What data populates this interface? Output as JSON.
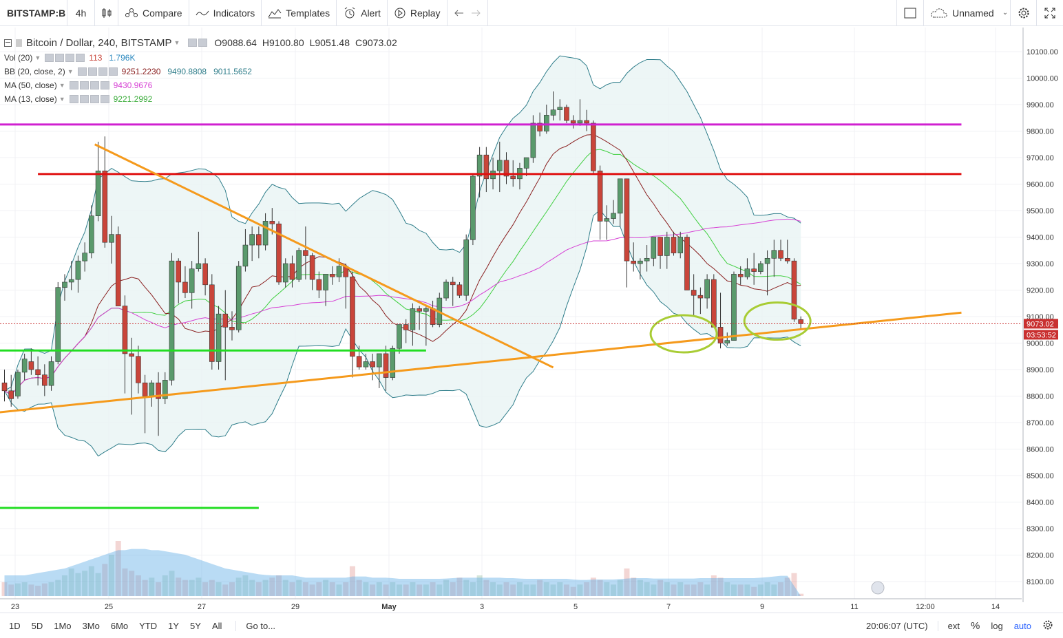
{
  "toolbar": {
    "symbol": "BITSTAMP:B",
    "interval": "4h",
    "compare": "Compare",
    "indicators": "Indicators",
    "templates": "Templates",
    "alert": "Alert",
    "replay": "Replay",
    "layout_name": "Unnamed",
    "icons": [
      "bar-style-icon",
      "compare-icon",
      "indicators-icon",
      "templates-icon",
      "alert-icon",
      "replay-icon",
      "undo-icon",
      "redo-icon",
      "layout-icon",
      "cloud-icon",
      "settings-icon",
      "fullscreen-icon"
    ]
  },
  "legend": {
    "title": "Bitcoin / Dollar, 240, BITSTAMP",
    "open": "O9088.64",
    "high": "H9100.80",
    "low": "L9051.48",
    "close": "C9073.02",
    "vol_name": "Vol (20)",
    "vol_value1": "113",
    "vol_value2": "1.796K",
    "bb_name": "BB (20, close, 2)",
    "bb_basis": "9251.2230",
    "bb_upper": "9490.8808",
    "bb_lower": "9011.5652",
    "ma50_name": "MA (50, close)",
    "ma50_value": "9430.9676",
    "ma13_name": "MA (13, close)",
    "ma13_value": "9221.2992"
  },
  "colors": {
    "up": "#5a9a6c",
    "down": "#c9453a",
    "bb": "#2e7d8a",
    "bb_fill": "#e8f4f4",
    "ma50": "#d63fd4",
    "ma13": "#8a2020",
    "bb_basis": "#3fcf3f",
    "hline_magenta": "#d020d0",
    "hline_red": "#e01010",
    "hline_green": "#22dd22",
    "trend_orange": "#f59a1c",
    "ellipse": "#a8cc34",
    "price_label": "#c93030"
  },
  "price_axis": {
    "ticks": [
      "10100.00",
      "10000.00",
      "9900.00",
      "9800.00",
      "9700.00",
      "9600.00",
      "9500.00",
      "9400.00",
      "9300.00",
      "9200.00",
      "9100.00",
      "9000.00",
      "8900.00",
      "8800.00",
      "8700.00",
      "8600.00",
      "8500.00",
      "8400.00",
      "8300.00",
      "8200.00",
      "8100.00"
    ],
    "current_price": "9073.02",
    "countdown": "03:53:52"
  },
  "time_axis": {
    "labels": [
      "23",
      "25",
      "27",
      "29",
      "May",
      "3",
      "5",
      "7",
      "9",
      "11",
      "12:00",
      "14"
    ]
  },
  "bottom_bar": {
    "ranges": [
      "1D",
      "5D",
      "1Mo",
      "3Mo",
      "6Mo",
      "YTD",
      "1Y",
      "5Y",
      "All"
    ],
    "goto": "Go to...",
    "time": "20:06:07 (UTC)",
    "ext": "ext",
    "percent": "%",
    "log": "log",
    "auto": "auto"
  },
  "chart_data": {
    "type": "candlestick",
    "symbol": "Bitcoin / Dollar",
    "interval": "240",
    "ylim": [
      8030,
      10160
    ],
    "candles_ohlc": [
      [
        8850,
        8900,
        8780,
        8820
      ],
      [
        8820,
        8880,
        8760,
        8790
      ],
      [
        8800,
        8900,
        8790,
        8890
      ],
      [
        8890,
        8960,
        8860,
        8940
      ],
      [
        8930,
        8980,
        8880,
        8900
      ],
      [
        8900,
        8950,
        8840,
        8880
      ],
      [
        8880,
        8920,
        8800,
        8840
      ],
      [
        8840,
        8950,
        8820,
        8930
      ],
      [
        8930,
        9230,
        8920,
        9210
      ],
      [
        9210,
        9260,
        9160,
        9230
      ],
      [
        9230,
        9310,
        9200,
        9240
      ],
      [
        9240,
        9330,
        9190,
        9310
      ],
      [
        9310,
        9380,
        9270,
        9340
      ],
      [
        9340,
        9520,
        9320,
        9480
      ],
      [
        9480,
        9760,
        9460,
        9650
      ],
      [
        9650,
        9780,
        9360,
        9380
      ],
      [
        9380,
        9480,
        9300,
        9410
      ],
      [
        9410,
        9440,
        9140,
        9140
      ],
      [
        9140,
        9180,
        8810,
        8960
      ],
      [
        8960,
        9020,
        8730,
        8950
      ],
      [
        8950,
        8990,
        8810,
        8850
      ],
      [
        8850,
        8880,
        8660,
        8800
      ],
      [
        8800,
        8860,
        8760,
        8850
      ],
      [
        8850,
        8890,
        8650,
        8790
      ],
      [
        8790,
        8890,
        8770,
        8860
      ],
      [
        8860,
        9340,
        8840,
        9310
      ],
      [
        9310,
        9320,
        9150,
        9230
      ],
      [
        9230,
        9290,
        9170,
        9190
      ],
      [
        9190,
        9310,
        9130,
        9280
      ],
      [
        9280,
        9420,
        9270,
        9300
      ],
      [
        9300,
        9320,
        9180,
        9220
      ],
      [
        9220,
        9260,
        8900,
        8930
      ],
      [
        8930,
        9140,
        8900,
        9110
      ],
      [
        9110,
        9200,
        8860,
        9060
      ],
      [
        9060,
        9120,
        9010,
        9050
      ],
      [
        9050,
        9310,
        9040,
        9290
      ],
      [
        9290,
        9430,
        9270,
        9370
      ],
      [
        9370,
        9440,
        9310,
        9410
      ],
      [
        9410,
        9440,
        9320,
        9370
      ],
      [
        9370,
        9490,
        9350,
        9460
      ],
      [
        9460,
        9510,
        9410,
        9450
      ],
      [
        9450,
        9460,
        9220,
        9230
      ],
      [
        9230,
        9320,
        9210,
        9300
      ],
      [
        9300,
        9330,
        9210,
        9240
      ],
      [
        9240,
        9360,
        9230,
        9350
      ],
      [
        9350,
        9440,
        9240,
        9330
      ],
      [
        9330,
        9340,
        9200,
        9240
      ],
      [
        9240,
        9270,
        9170,
        9200
      ],
      [
        9200,
        9240,
        9140,
        9260
      ],
      [
        9260,
        9290,
        9220,
        9250
      ],
      [
        9250,
        9320,
        9230,
        9290
      ],
      [
        9290,
        9300,
        9130,
        9250
      ],
      [
        9250,
        9270,
        8870,
        8950
      ],
      [
        8950,
        8990,
        8900,
        8910
      ],
      [
        8910,
        8960,
        8900,
        8930
      ],
      [
        8930,
        8960,
        8860,
        8910
      ],
      [
        8910,
        8960,
        8830,
        8960
      ],
      [
        8960,
        8990,
        8820,
        8870
      ],
      [
        8870,
        8990,
        8860,
        8980
      ],
      [
        8980,
        9070,
        8960,
        9070
      ],
      [
        9070,
        9090,
        9000,
        9050
      ],
      [
        9050,
        9150,
        8990,
        9130
      ],
      [
        9130,
        9140,
        9050,
        9120
      ],
      [
        9120,
        9140,
        8990,
        9130
      ],
      [
        9130,
        9160,
        9060,
        9070
      ],
      [
        9070,
        9190,
        9060,
        9170
      ],
      [
        9170,
        9240,
        9160,
        9230
      ],
      [
        9230,
        9250,
        9140,
        9220
      ],
      [
        9220,
        9230,
        9170,
        9180
      ],
      [
        9180,
        9410,
        9160,
        9390
      ],
      [
        9390,
        9640,
        9370,
        9630
      ],
      [
        9630,
        9740,
        9550,
        9710
      ],
      [
        9710,
        9740,
        9570,
        9620
      ],
      [
        9620,
        9700,
        9580,
        9650
      ],
      [
        9650,
        9760,
        9570,
        9690
      ],
      [
        9690,
        9720,
        9600,
        9630
      ],
      [
        9630,
        9690,
        9590,
        9620
      ],
      [
        9620,
        9680,
        9580,
        9660
      ],
      [
        9660,
        9700,
        9630,
        9700
      ],
      [
        9700,
        9860,
        9680,
        9830
      ],
      [
        9830,
        9870,
        9780,
        9800
      ],
      [
        9800,
        9900,
        9790,
        9860
      ],
      [
        9860,
        9950,
        9840,
        9880
      ],
      [
        9880,
        9920,
        9840,
        9890
      ],
      [
        9890,
        9900,
        9830,
        9840
      ],
      [
        9840,
        9860,
        9810,
        9830
      ],
      [
        9830,
        9920,
        9820,
        9840
      ],
      [
        9840,
        9880,
        9800,
        9830
      ],
      [
        9830,
        9840,
        9640,
        9650
      ],
      [
        9650,
        9670,
        9390,
        9460
      ],
      [
        9460,
        9520,
        9390,
        9470
      ],
      [
        9470,
        9540,
        9450,
        9490
      ],
      [
        9490,
        9620,
        9440,
        9620
      ],
      [
        9620,
        9620,
        9210,
        9310
      ],
      [
        9310,
        9380,
        9270,
        9300
      ],
      [
        9300,
        9320,
        9240,
        9310
      ],
      [
        9310,
        9370,
        9270,
        9320
      ],
      [
        9320,
        9400,
        9290,
        9400
      ],
      [
        9400,
        9400,
        9280,
        9330
      ],
      [
        9330,
        9420,
        9280,
        9400
      ],
      [
        9400,
        9420,
        9330,
        9340
      ],
      [
        9340,
        9420,
        9320,
        9400
      ],
      [
        9400,
        9410,
        9200,
        9200
      ],
      [
        9200,
        9260,
        9100,
        9180
      ],
      [
        9180,
        9210,
        9110,
        9170
      ],
      [
        9170,
        9260,
        9130,
        9240
      ],
      [
        9240,
        9260,
        9060,
        9060
      ],
      [
        9060,
        9190,
        8980,
        9000
      ],
      [
        9000,
        9040,
        8990,
        9010
      ],
      [
        9010,
        9270,
        9010,
        9260
      ],
      [
        9260,
        9290,
        9220,
        9250
      ],
      [
        9250,
        9320,
        9240,
        9280
      ],
      [
        9280,
        9340,
        9220,
        9270
      ],
      [
        9270,
        9310,
        9260,
        9300
      ],
      [
        9300,
        9350,
        9180,
        9320
      ],
      [
        9320,
        9390,
        9250,
        9350
      ],
      [
        9350,
        9390,
        9310,
        9320
      ],
      [
        9320,
        9390,
        9300,
        9310
      ],
      [
        9310,
        9320,
        9080,
        9090
      ],
      [
        9088.64,
        9100.8,
        9051.48,
        9073.02
      ]
    ],
    "volume_max_scale": 3.0,
    "volume": [
      0.6,
      0.5,
      0.55,
      0.6,
      0.5,
      0.45,
      0.55,
      0.6,
      0.7,
      0.9,
      1.2,
      1.0,
      1.1,
      1.3,
      1.0,
      1.4,
      1.8,
      2.4,
      1.2,
      1.1,
      0.9,
      0.7,
      0.8,
      0.6,
      0.9,
      1.1,
      0.8,
      0.7,
      0.7,
      0.8,
      0.6,
      0.7,
      0.6,
      0.5,
      0.6,
      0.8,
      0.9,
      0.7,
      0.6,
      0.7,
      0.8,
      0.9,
      0.7,
      0.6,
      0.7,
      0.6,
      0.5,
      0.6,
      0.7,
      0.6,
      0.5,
      0.6,
      1.3,
      0.7,
      0.6,
      0.5,
      0.6,
      0.5,
      0.6,
      0.5,
      0.5,
      0.6,
      0.5,
      0.5,
      0.6,
      0.5,
      0.7,
      0.6,
      0.8,
      0.7,
      0.6,
      0.9,
      0.7,
      0.6,
      0.5,
      0.6,
      0.5,
      0.6,
      0.5,
      0.5,
      0.7,
      0.6,
      0.5,
      0.6,
      0.5,
      0.4,
      0.5,
      0.6,
      0.8,
      0.7,
      0.6,
      0.5,
      0.7,
      1.2,
      0.8,
      0.7,
      0.6,
      0.5,
      0.7,
      0.6,
      0.5,
      0.6,
      0.5,
      0.5,
      0.6,
      0.5,
      0.9,
      0.8,
      0.6,
      0.5,
      0.5,
      0.5,
      0.4,
      0.5,
      0.6,
      0.5,
      0.6,
      0.8,
      1.0,
      0.1
    ],
    "volume_ma": [
      0.9,
      0.9,
      0.9,
      0.9,
      0.95,
      1.0,
      1.05,
      1.1,
      1.15,
      1.2,
      1.3,
      1.4,
      1.5,
      1.6,
      1.7,
      1.8,
      1.9,
      2.0,
      2.0,
      2.05,
      2.05,
      2.05,
      2.0,
      2.0,
      1.95,
      1.9,
      1.85,
      1.8,
      1.7,
      1.6,
      1.5,
      1.4,
      1.3,
      1.2,
      1.15,
      1.1,
      1.05,
      1.0,
      0.95,
      0.92,
      0.9,
      0.9,
      0.9,
      0.9,
      0.85,
      0.8,
      0.8,
      0.8,
      0.8,
      0.8,
      0.8,
      0.8,
      0.85,
      0.85,
      0.85,
      0.8,
      0.8,
      0.8,
      0.78,
      0.75,
      0.75,
      0.75,
      0.75,
      0.75,
      0.75,
      0.75,
      0.76,
      0.78,
      0.8,
      0.8,
      0.8,
      0.8,
      0.8,
      0.8,
      0.8,
      0.78,
      0.78,
      0.76,
      0.75,
      0.75,
      0.75,
      0.75,
      0.75,
      0.75,
      0.75,
      0.72,
      0.7,
      0.7,
      0.72,
      0.72,
      0.72,
      0.72,
      0.74,
      0.76,
      0.78,
      0.78,
      0.78,
      0.76,
      0.76,
      0.76,
      0.76,
      0.76,
      0.76,
      0.76,
      0.78,
      0.78,
      0.78,
      0.78,
      0.78,
      0.78,
      0.78,
      0.78,
      0.78,
      0.8,
      0.82,
      0.85,
      0.88,
      0.88
    ],
    "horizontal_lines": [
      {
        "price": 9825,
        "color": "#d020d0",
        "from_index": -6,
        "to_index": 143
      },
      {
        "price": 9638,
        "color": "#e01010",
        "from_index": 5,
        "to_index": 143
      },
      {
        "price": 8972,
        "color": "#22dd22",
        "from_index": -6,
        "to_index": 63
      },
      {
        "price": 8378,
        "color": "#22dd22",
        "from_index": -6,
        "to_index": 38
      }
    ],
    "trend_lines": [
      {
        "p1": [
          -6,
          8725
        ],
        "p2": [
          143,
          9115
        ],
        "color": "#f59a1c"
      },
      {
        "p1": [
          13.5,
          9750
        ],
        "p2": [
          82,
          8908
        ],
        "color": "#f59a1c"
      }
    ],
    "ellipses": [
      {
        "index": 101.5,
        "price": 9035
      },
      {
        "index": 115.5,
        "price": 9083
      }
    ]
  }
}
